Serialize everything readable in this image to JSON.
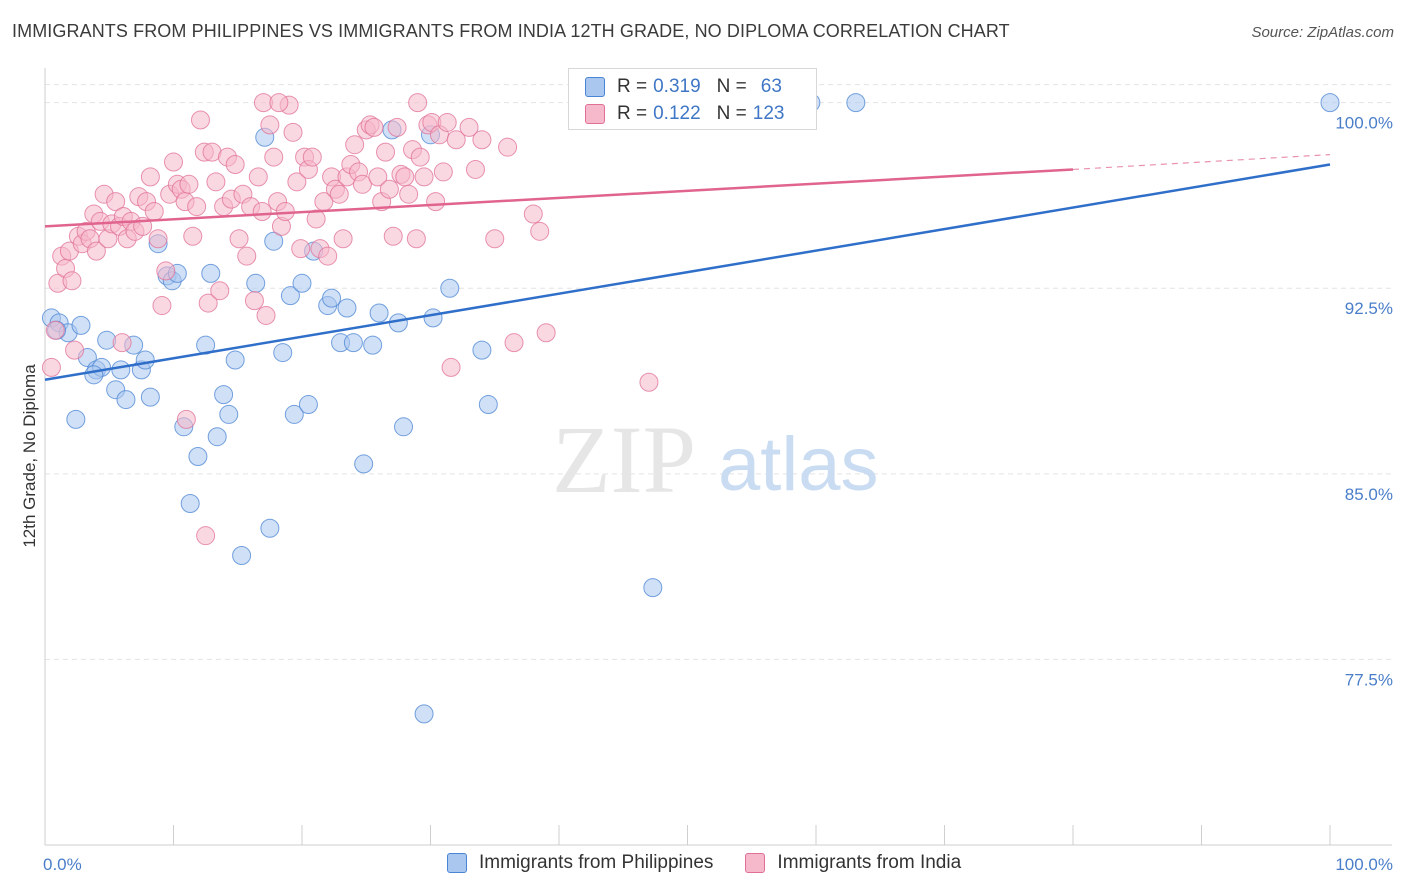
{
  "header": {
    "title": "IMMIGRANTS FROM PHILIPPINES VS IMMIGRANTS FROM INDIA 12TH GRADE, NO DIPLOMA CORRELATION CHART",
    "source": "Source: ZipAtlas.com"
  },
  "watermark": {
    "zip": "ZIP",
    "atlas": "atlas"
  },
  "legend": {
    "rows": [
      {
        "r_label": "R =",
        "r_value": "0.319",
        "n_label": "N =",
        "n_value": "63"
      },
      {
        "r_label": "R =",
        "r_value": "0.122",
        "n_label": "N =",
        "n_value": "123"
      }
    ]
  },
  "chart_data": {
    "type": "scatter",
    "title": "IMMIGRANTS FROM PHILIPPINES VS IMMIGRANTS FROM INDIA 12TH GRADE, NO DIPLOMA CORRELATION CHART",
    "xlabel": "",
    "ylabel": "12th Grade, No Diploma",
    "xlim": [
      0,
      100
    ],
    "ylim": [
      70.0,
      101.4
    ],
    "x_tick_labels": [
      "0.0%",
      "100.0%"
    ],
    "y_ticks": [
      77.5,
      85.0,
      92.5,
      100.0
    ],
    "y_tick_labels": [
      "77.5%",
      "85.0%",
      "92.5%",
      "100.0%"
    ],
    "grid": true,
    "legend_position": "top-center",
    "colors": {
      "philippines_fill": "#a9c7ef",
      "philippines_stroke": "#4a84d4",
      "philippines_line": "#2f6fc9",
      "india_fill": "#f6b8cb",
      "india_stroke": "#e07096",
      "india_line": "#e0648e"
    },
    "series": [
      {
        "name": "Immigrants from Philippines",
        "r": 0.319,
        "n": 63,
        "trend": {
          "x": [
            0,
            100
          ],
          "y": [
            88.8,
            97.5
          ]
        },
        "points": [
          [
            0.5,
            91.3
          ],
          [
            1.1,
            91.1
          ],
          [
            1.8,
            90.7
          ],
          [
            2.4,
            87.2
          ],
          [
            2.8,
            91.0
          ],
          [
            3.3,
            89.7
          ],
          [
            4.0,
            89.2
          ],
          [
            4.4,
            89.3
          ],
          [
            4.8,
            90.4
          ],
          [
            5.5,
            88.4
          ],
          [
            5.9,
            89.2
          ],
          [
            6.3,
            88.0
          ],
          [
            6.9,
            90.2
          ],
          [
            7.5,
            89.2
          ],
          [
            7.8,
            89.6
          ],
          [
            8.2,
            88.1
          ],
          [
            8.8,
            94.3
          ],
          [
            9.5,
            93.0
          ],
          [
            9.9,
            92.8
          ],
          [
            10.3,
            93.1
          ],
          [
            10.8,
            86.9
          ],
          [
            11.3,
            83.8
          ],
          [
            11.9,
            85.7
          ],
          [
            12.5,
            90.2
          ],
          [
            12.9,
            93.1
          ],
          [
            13.4,
            86.5
          ],
          [
            13.9,
            88.2
          ],
          [
            14.3,
            87.4
          ],
          [
            14.8,
            89.6
          ],
          [
            15.3,
            81.7
          ],
          [
            16.4,
            92.7
          ],
          [
            17.1,
            98.6
          ],
          [
            17.5,
            82.8
          ],
          [
            17.8,
            94.4
          ],
          [
            18.5,
            89.9
          ],
          [
            19.1,
            92.2
          ],
          [
            19.4,
            87.4
          ],
          [
            20.0,
            92.7
          ],
          [
            20.5,
            87.8
          ],
          [
            20.9,
            94.0
          ],
          [
            22.0,
            91.8
          ],
          [
            22.3,
            92.1
          ],
          [
            23.0,
            90.3
          ],
          [
            23.5,
            91.7
          ],
          [
            24.0,
            90.3
          ],
          [
            24.8,
            85.4
          ],
          [
            25.5,
            90.2
          ],
          [
            26.0,
            91.5
          ],
          [
            27.0,
            98.9
          ],
          [
            27.5,
            91.1
          ],
          [
            27.9,
            86.9
          ],
          [
            29.5,
            75.3
          ],
          [
            30.0,
            98.7
          ],
          [
            30.2,
            91.3
          ],
          [
            31.5,
            92.5
          ],
          [
            34.0,
            90.0
          ],
          [
            34.5,
            87.8
          ],
          [
            47.3,
            80.4
          ],
          [
            59.6,
            100.0
          ],
          [
            63.1,
            100.0
          ],
          [
            100.0,
            100.0
          ],
          [
            0.9,
            90.8
          ],
          [
            3.8,
            89.0
          ]
        ]
      },
      {
        "name": "Immigrants from India",
        "r": 0.122,
        "n": 123,
        "trend": {
          "x": [
            0,
            80
          ],
          "y": [
            95.0,
            97.3
          ],
          "dashed_extension": {
            "x": [
              80,
              100
            ],
            "y": [
              97.3,
              97.9
            ]
          }
        },
        "points": [
          [
            0.5,
            89.3
          ],
          [
            0.8,
            90.8
          ],
          [
            1.0,
            92.7
          ],
          [
            1.3,
            93.8
          ],
          [
            1.6,
            93.3
          ],
          [
            1.9,
            94.0
          ],
          [
            2.1,
            92.8
          ],
          [
            2.3,
            90.0
          ],
          [
            2.6,
            94.6
          ],
          [
            2.9,
            94.3
          ],
          [
            3.2,
            94.8
          ],
          [
            3.5,
            94.5
          ],
          [
            3.8,
            95.5
          ],
          [
            4.0,
            94.0
          ],
          [
            4.3,
            95.2
          ],
          [
            4.6,
            96.3
          ],
          [
            4.9,
            94.5
          ],
          [
            5.2,
            95.1
          ],
          [
            5.5,
            96.0
          ],
          [
            5.8,
            95.0
          ],
          [
            6.1,
            95.4
          ],
          [
            6.4,
            94.5
          ],
          [
            6.7,
            95.2
          ],
          [
            7.0,
            94.8
          ],
          [
            7.3,
            96.2
          ],
          [
            7.6,
            95.0
          ],
          [
            7.9,
            96.0
          ],
          [
            8.2,
            97.0
          ],
          [
            8.5,
            95.6
          ],
          [
            8.8,
            94.5
          ],
          [
            9.1,
            91.8
          ],
          [
            9.4,
            93.2
          ],
          [
            9.7,
            96.3
          ],
          [
            10.0,
            97.6
          ],
          [
            10.3,
            96.7
          ],
          [
            10.6,
            96.5
          ],
          [
            10.9,
            96.0
          ],
          [
            11.2,
            96.7
          ],
          [
            11.5,
            94.6
          ],
          [
            11.8,
            95.8
          ],
          [
            12.1,
            99.3
          ],
          [
            12.4,
            98.0
          ],
          [
            12.7,
            91.9
          ],
          [
            13.0,
            98.0
          ],
          [
            13.3,
            96.8
          ],
          [
            13.6,
            92.4
          ],
          [
            13.9,
            95.8
          ],
          [
            14.2,
            97.8
          ],
          [
            14.5,
            96.1
          ],
          [
            14.8,
            97.5
          ],
          [
            15.1,
            94.5
          ],
          [
            15.4,
            96.3
          ],
          [
            15.7,
            93.8
          ],
          [
            16.0,
            95.8
          ],
          [
            16.3,
            92.0
          ],
          [
            16.6,
            97.0
          ],
          [
            16.9,
            95.6
          ],
          [
            17.2,
            91.4
          ],
          [
            17.5,
            99.1
          ],
          [
            17.8,
            97.8
          ],
          [
            18.1,
            96.0
          ],
          [
            18.4,
            95.0
          ],
          [
            18.7,
            95.6
          ],
          [
            19.0,
            99.9
          ],
          [
            19.3,
            98.8
          ],
          [
            19.6,
            96.8
          ],
          [
            19.9,
            94.1
          ],
          [
            20.2,
            97.8
          ],
          [
            20.5,
            97.3
          ],
          [
            20.8,
            97.8
          ],
          [
            21.1,
            95.3
          ],
          [
            21.4,
            94.1
          ],
          [
            21.7,
            96.0
          ],
          [
            22.0,
            93.8
          ],
          [
            22.3,
            97.0
          ],
          [
            22.6,
            96.5
          ],
          [
            22.9,
            96.3
          ],
          [
            23.2,
            94.5
          ],
          [
            23.5,
            97.0
          ],
          [
            23.8,
            97.5
          ],
          [
            24.1,
            98.3
          ],
          [
            24.4,
            97.2
          ],
          [
            24.7,
            96.7
          ],
          [
            25.0,
            98.9
          ],
          [
            25.3,
            99.1
          ],
          [
            25.6,
            99.0
          ],
          [
            25.9,
            97.0
          ],
          [
            26.2,
            96.0
          ],
          [
            26.5,
            98.0
          ],
          [
            26.8,
            96.5
          ],
          [
            27.1,
            94.6
          ],
          [
            27.4,
            99.0
          ],
          [
            27.7,
            97.1
          ],
          [
            28.0,
            97.0
          ],
          [
            28.3,
            96.3
          ],
          [
            28.6,
            98.1
          ],
          [
            28.9,
            94.5
          ],
          [
            29.2,
            97.8
          ],
          [
            29.5,
            97.0
          ],
          [
            29.8,
            99.1
          ],
          [
            30.1,
            99.2
          ],
          [
            30.4,
            96.0
          ],
          [
            30.7,
            98.7
          ],
          [
            31.0,
            97.2
          ],
          [
            31.3,
            99.2
          ],
          [
            31.6,
            89.3
          ],
          [
            32.0,
            98.5
          ],
          [
            33.0,
            99.0
          ],
          [
            33.5,
            97.3
          ],
          [
            34.0,
            98.5
          ],
          [
            35.0,
            94.5
          ],
          [
            36.0,
            98.2
          ],
          [
            36.5,
            90.3
          ],
          [
            38.5,
            94.8
          ],
          [
            39.0,
            90.7
          ],
          [
            47.0,
            88.7
          ],
          [
            11.0,
            87.2
          ],
          [
            12.5,
            82.5
          ],
          [
            17.0,
            100.0
          ],
          [
            18.2,
            100.0
          ],
          [
            29.0,
            100.0
          ],
          [
            38.0,
            95.5
          ],
          [
            6.0,
            90.3
          ]
        ]
      }
    ]
  },
  "bottom_legend": {
    "items": [
      "Immigrants from Philippines",
      "Immigrants from India"
    ]
  }
}
